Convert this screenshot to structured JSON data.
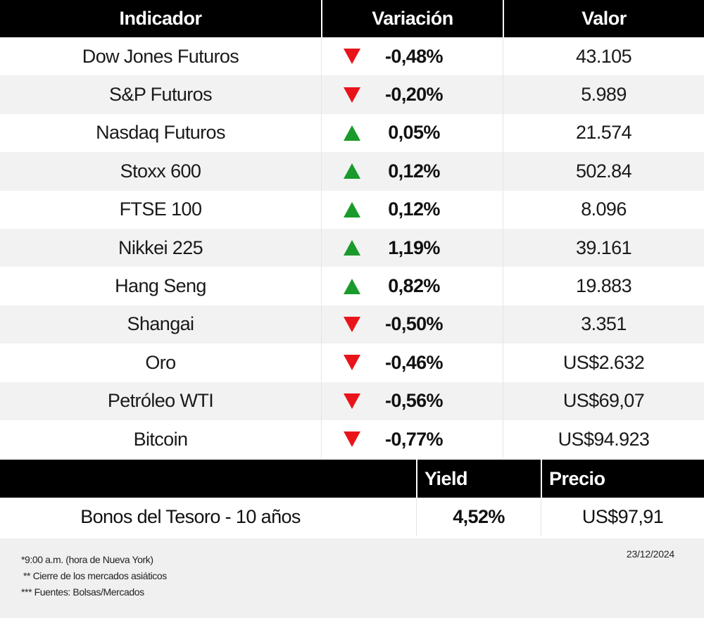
{
  "table": {
    "headers": {
      "indicator": "Indicador",
      "change": "Variación",
      "value": "Valor"
    },
    "rows": [
      {
        "name": "Dow Jones Futuros",
        "direction": "down",
        "change": "-0,48%",
        "value": "43.105"
      },
      {
        "name": "S&P Futuros",
        "direction": "down",
        "change": "-0,20%",
        "value": "5.989"
      },
      {
        "name": "Nasdaq Futuros",
        "direction": "up",
        "change": "0,05%",
        "value": "21.574"
      },
      {
        "name": "Stoxx 600",
        "direction": "up",
        "change": "0,12%",
        "value": "502.84"
      },
      {
        "name": "FTSE 100",
        "direction": "up",
        "change": "0,12%",
        "value": "8.096"
      },
      {
        "name": "Nikkei 225",
        "direction": "up",
        "change": "1,19%",
        "value": "39.161"
      },
      {
        "name": "Hang Seng",
        "direction": "up",
        "change": "0,82%",
        "value": "19.883"
      },
      {
        "name": "Shangai",
        "direction": "down",
        "change": "-0,50%",
        "value": "3.351"
      },
      {
        "name": "Oro",
        "direction": "down",
        "change": "-0,46%",
        "value": "US$2.632"
      },
      {
        "name": "Petróleo WTI",
        "direction": "down",
        "change": "-0,56%",
        "value": "US$69,07"
      },
      {
        "name": "Bitcoin",
        "direction": "down",
        "change": "-0,77%",
        "value": "US$94.923"
      }
    ]
  },
  "bonds": {
    "headers": {
      "yield": "Yield",
      "price": "Precio"
    },
    "row": {
      "name": "Bonos del Tesoro - 10 años",
      "yield": "4,52%",
      "price": "US$97,91"
    }
  },
  "footer": {
    "notes": [
      "*9:00 a.m. (hora de Nueva York)",
      "** Cierre de los mercados asiáticos",
      "*** Fuentes: Bolsas/Mercados"
    ],
    "date": "23/12/2024"
  },
  "colors": {
    "header_bg": "#000000",
    "up_arrow": "#1a9a2a",
    "down_arrow": "#e8141a",
    "alt_row": "#f2f2f2",
    "footer_bg": "#f0f0f0"
  },
  "icons": {
    "up": "triangle-up-icon",
    "down": "triangle-down-icon"
  }
}
